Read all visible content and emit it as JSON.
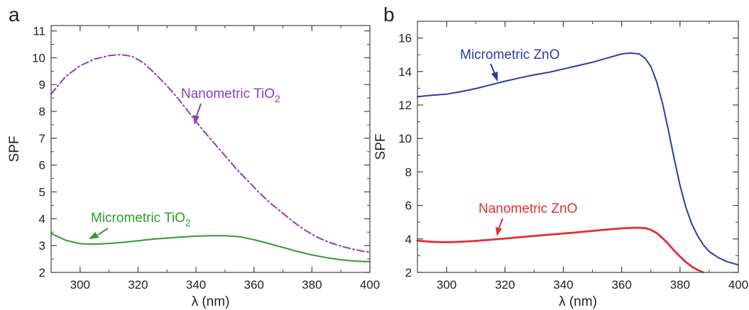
{
  "chart_data": [
    {
      "type": "line",
      "panel_label": "a",
      "xlabel": "λ (nm)",
      "ylabel": "SPF",
      "xlim": [
        290,
        400
      ],
      "ylim": [
        2,
        11.2
      ],
      "xticks": [
        300,
        320,
        340,
        360,
        380,
        400
      ],
      "yticks": [
        2,
        3,
        4,
        5,
        6,
        7,
        8,
        9,
        10,
        11
      ],
      "grid": false,
      "series": [
        {
          "name": "Nanometric TiO2",
          "label_main": "Nanometric TiO",
          "label_sub": "2",
          "color": "#8a3fc0",
          "style": "dash-dot",
          "x": [
            290,
            295,
            300,
            305,
            310,
            314,
            318,
            322,
            326,
            330,
            334,
            338,
            342,
            346,
            350,
            354,
            358,
            362,
            366,
            370,
            374,
            378,
            382,
            386,
            390,
            394,
            398,
            400
          ],
          "y": [
            8.65,
            9.3,
            9.7,
            9.95,
            10.08,
            10.12,
            10.05,
            9.8,
            9.4,
            8.95,
            8.45,
            7.9,
            7.35,
            6.85,
            6.35,
            5.85,
            5.4,
            4.95,
            4.55,
            4.2,
            3.85,
            3.55,
            3.3,
            3.12,
            2.98,
            2.87,
            2.78,
            2.75
          ]
        },
        {
          "name": "Micrometric TiO2",
          "label_main": "Micrometric TiO",
          "label_sub": "2",
          "color": "#2e9b2e",
          "style": "solid",
          "x": [
            290,
            295,
            300,
            305,
            310,
            315,
            320,
            325,
            330,
            335,
            340,
            345,
            350,
            355,
            360,
            365,
            370,
            375,
            380,
            385,
            390,
            395,
            400
          ],
          "y": [
            3.45,
            3.2,
            3.07,
            3.05,
            3.08,
            3.12,
            3.18,
            3.24,
            3.28,
            3.32,
            3.35,
            3.37,
            3.37,
            3.33,
            3.22,
            3.08,
            2.93,
            2.78,
            2.65,
            2.55,
            2.47,
            2.42,
            2.4
          ]
        }
      ]
    },
    {
      "type": "line",
      "panel_label": "b",
      "xlabel": "λ (nm)",
      "ylabel": "SPF",
      "xlim": [
        290,
        400
      ],
      "ylim": [
        2,
        17
      ],
      "xticks": [
        300,
        320,
        340,
        360,
        380,
        400
      ],
      "yticks": [
        2,
        4,
        6,
        8,
        10,
        12,
        14,
        16
      ],
      "grid": false,
      "series": [
        {
          "name": "Micrometric ZnO",
          "color": "#2b3aa8",
          "style": "solid",
          "x": [
            290,
            295,
            300,
            305,
            310,
            315,
            320,
            325,
            330,
            335,
            340,
            345,
            350,
            355,
            360,
            363,
            366,
            368,
            370,
            372,
            374,
            376,
            378,
            380,
            382,
            384,
            386,
            388,
            390,
            393,
            396,
            400
          ],
          "y": [
            12.5,
            12.58,
            12.65,
            12.8,
            12.98,
            13.2,
            13.42,
            13.62,
            13.8,
            13.95,
            14.15,
            14.35,
            14.55,
            14.8,
            15.05,
            15.1,
            15.05,
            14.8,
            14.3,
            13.4,
            12.1,
            10.5,
            8.8,
            7.2,
            5.9,
            4.9,
            4.2,
            3.65,
            3.25,
            2.9,
            2.65,
            2.45
          ]
        },
        {
          "name": "Nanometric ZnO",
          "color": "#e03030",
          "style": "dotted",
          "x": [
            290,
            295,
            300,
            305,
            310,
            315,
            320,
            325,
            330,
            335,
            340,
            345,
            350,
            355,
            360,
            365,
            368,
            370,
            372,
            374,
            376,
            378,
            380,
            382,
            384,
            386,
            388
          ],
          "y": [
            3.9,
            3.82,
            3.8,
            3.83,
            3.88,
            3.95,
            4.02,
            4.1,
            4.18,
            4.25,
            4.32,
            4.4,
            4.48,
            4.56,
            4.63,
            4.67,
            4.65,
            4.55,
            4.35,
            4.05,
            3.7,
            3.3,
            2.95,
            2.62,
            2.35,
            2.15,
            2.0
          ]
        }
      ]
    }
  ]
}
